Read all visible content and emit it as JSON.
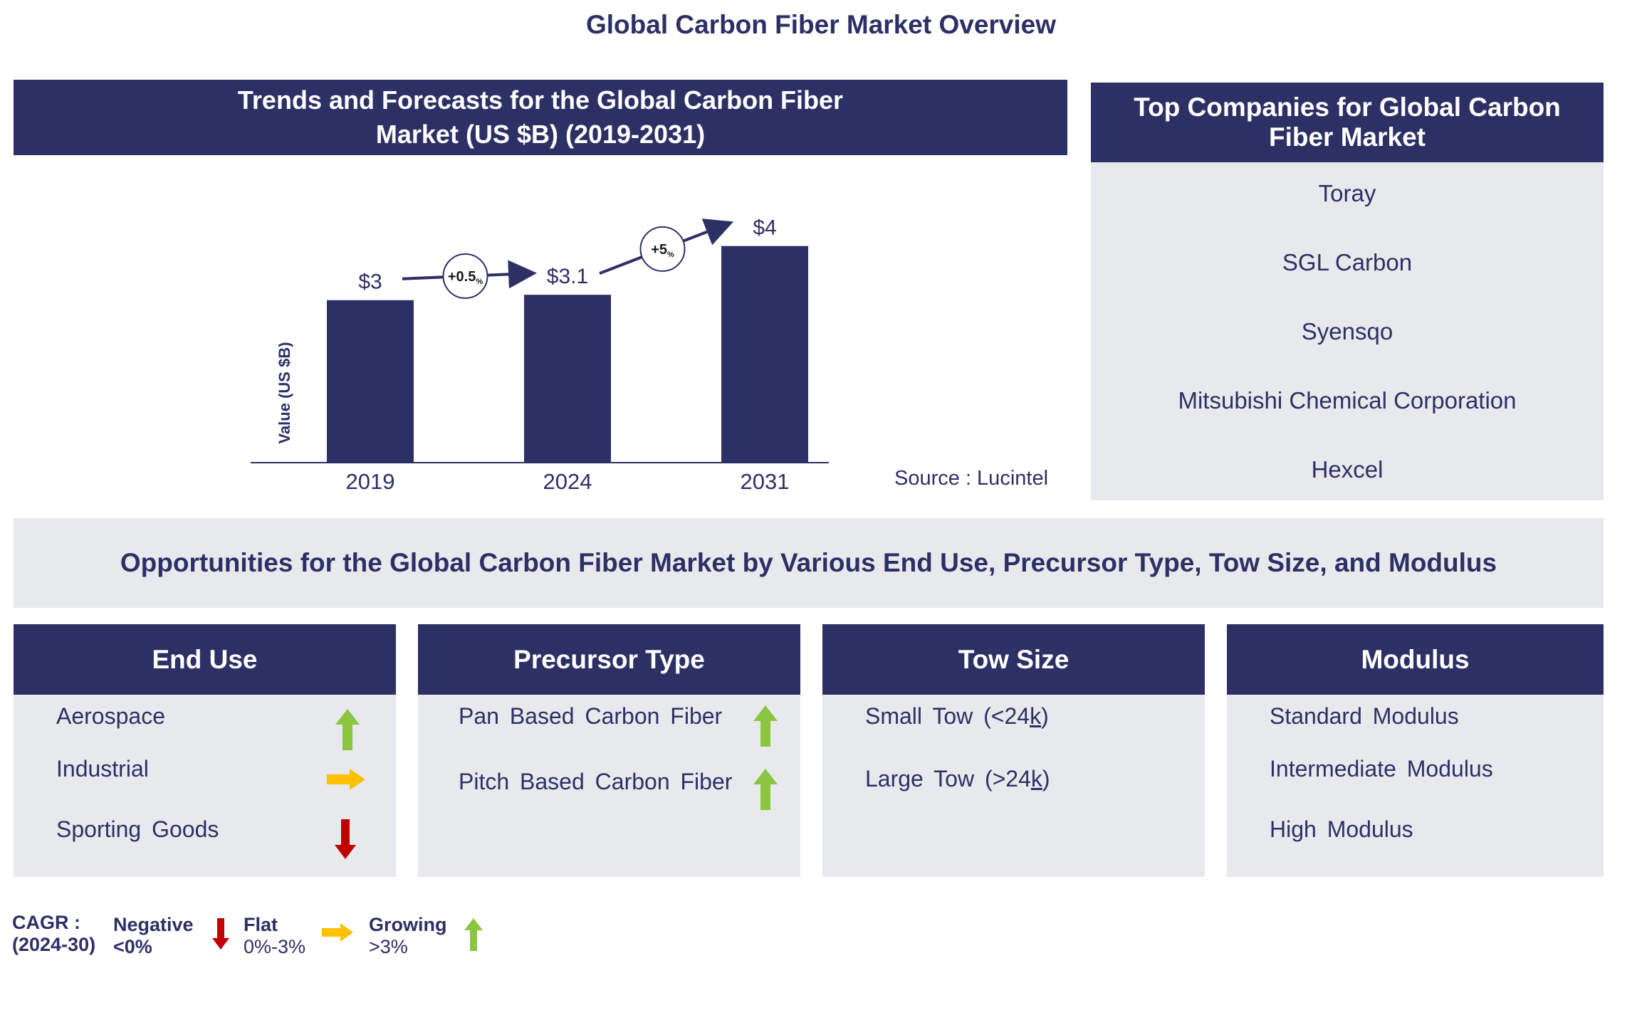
{
  "title": "Global Carbon Fiber Market Overview",
  "chart_panel": {
    "title_line1": "Trends and Forecasts for the Global Carbon Fiber",
    "title_line2": "Market (US $B) (2019-2031)"
  },
  "chart_data": {
    "type": "bar",
    "categories": [
      "2019",
      "2024",
      "2031"
    ],
    "values": [
      3,
      3.1,
      4
    ],
    "value_labels": [
      "$3",
      "$3.1",
      "$4"
    ],
    "ylabel": "Value (US $B)",
    "ylim": [
      0,
      4.6
    ],
    "growth_annotations": [
      {
        "from": "2019",
        "to": "2024",
        "label": "+0.5",
        "suffix": "%"
      },
      {
        "from": "2024",
        "to": "2031",
        "label": "+5",
        "suffix": "%"
      }
    ],
    "colors": {
      "bar": "#2d3065"
    }
  },
  "source": "Source : Lucintel",
  "companies": {
    "title_line1": "Top Companies for Global Carbon",
    "title_line2": "Fiber Market",
    "items": [
      "Toray",
      "SGL Carbon",
      "Syensqo",
      "Mitsubishi Chemical Corporation",
      "Hexcel"
    ]
  },
  "opportunities_title": "Opportunities for the Global Carbon Fiber Market by Various End Use, Precursor Type, Tow Size, and Modulus",
  "segments": [
    {
      "title": "End Use",
      "items": [
        {
          "label": "Aerospace",
          "trend": "growing"
        },
        {
          "label": "Industrial",
          "trend": "flat"
        },
        {
          "label": "Sporting Goods",
          "trend": "negative"
        }
      ]
    },
    {
      "title": "Precursor Type",
      "items": [
        {
          "label": "Pan Based Carbon Fiber",
          "trend": "growing"
        },
        {
          "label": "Pitch Based Carbon Fiber",
          "trend": "growing"
        }
      ]
    },
    {
      "title": "Tow Size",
      "items": [
        {
          "label_pre": "Small Tow (<24",
          "label_k": "k",
          "label_post": ")"
        },
        {
          "label_pre": "Large Tow (>24",
          "label_k": "k",
          "label_post": ")"
        }
      ]
    },
    {
      "title": "Modulus",
      "items": [
        {
          "label": "Standard Modulus"
        },
        {
          "label": "Intermediate Modulus"
        },
        {
          "label": "High Modulus"
        }
      ]
    }
  ],
  "legend": {
    "cagr_line1": "CAGR :",
    "cagr_line2": "(2024-30)",
    "negative_label": "Negative",
    "negative_range": "<0%",
    "flat_label": "Flat",
    "flat_range": "0%-3%",
    "growing_label": "Growing",
    "growing_range": ">3%"
  },
  "colors": {
    "navy": "#2d3065",
    "panel_gray": "#e8e9ec",
    "arrow_green": "#8cc540",
    "arrow_orange": "#ffc000",
    "arrow_red": "#c00000"
  }
}
